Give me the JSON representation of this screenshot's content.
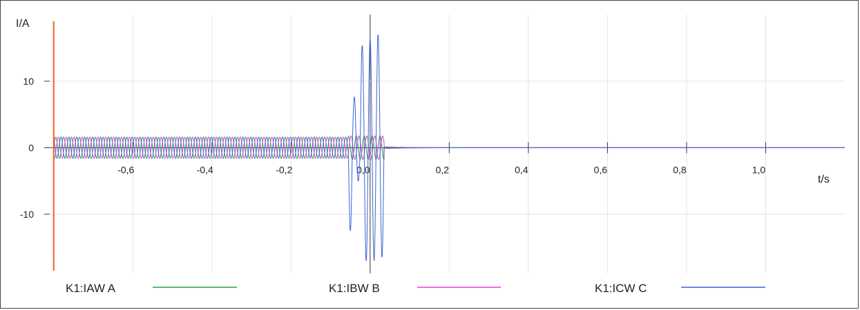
{
  "chart_data": {
    "type": "line",
    "xlabel": "t/s",
    "ylabel": "I/A",
    "xlim": [
      -0.81,
      1.2
    ],
    "ylim": [
      -18.5,
      19
    ],
    "grid": true,
    "legend_position": "bottom",
    "x_ticks": [
      {
        "value": -0.6,
        "label": "-0,6"
      },
      {
        "value": -0.4,
        "label": "-0,4"
      },
      {
        "value": -0.2,
        "label": "-0,2"
      },
      {
        "value": 0.0,
        "label": "0,0"
      },
      {
        "value": 0.2,
        "label": "0,2"
      },
      {
        "value": 0.4,
        "label": "0,4"
      },
      {
        "value": 0.6,
        "label": "0,6"
      },
      {
        "value": 0.8,
        "label": "0,8"
      },
      {
        "value": 1.0,
        "label": "1,0"
      }
    ],
    "y_ticks": [
      {
        "value": 10,
        "label": "10"
      },
      {
        "value": 0,
        "label": "0"
      },
      {
        "value": -10,
        "label": "-10"
      }
    ],
    "cursor_x": -0.8,
    "series": [
      {
        "name": "K1:IAW A",
        "color": "#2e9e3e",
        "description_points": [
          [
            -0.8,
            1.6
          ],
          [
            -0.05,
            1.6
          ],
          [
            0.03,
            2.0
          ],
          [
            0.04,
            0.0
          ],
          [
            1.2,
            0.0
          ]
        ],
        "amplitude_prefault": 1.6,
        "frequency_hz": 50,
        "phase_deg": 0
      },
      {
        "name": "K1:IBW B",
        "color": "#e040d8",
        "amplitude_prefault": 1.6,
        "frequency_hz": 50,
        "phase_deg": -120
      },
      {
        "name": "K1:ICW C",
        "color": "#3a63d6",
        "amplitude_prefault": 1.6,
        "frequency_hz": 50,
        "phase_deg": 120,
        "fault_start": -0.055,
        "fault_end": 0.035,
        "fault_peaks": [
          -12.5,
          7.6,
          -5.0,
          15.4,
          -17.0,
          16.4,
          -17.0,
          17.0,
          -16.5
        ]
      }
    ]
  }
}
